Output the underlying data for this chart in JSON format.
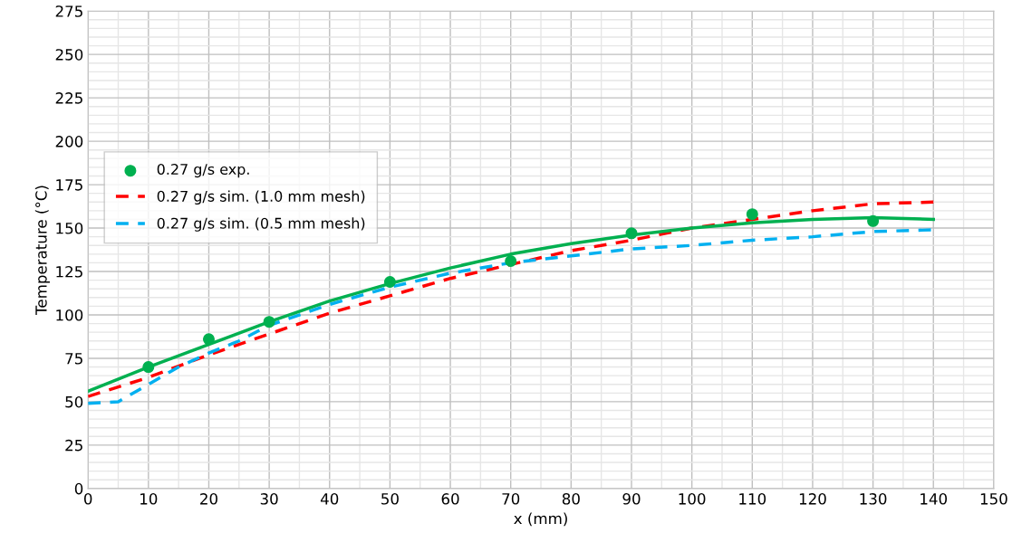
{
  "chart_data": {
    "type": "scatter",
    "xlabel": "x (mm)",
    "ylabel": "Temperature (°C)",
    "xlim": [
      0,
      150
    ],
    "xticks": [
      0,
      10,
      20,
      30,
      40,
      50,
      60,
      70,
      80,
      90,
      100,
      110,
      120,
      130,
      140,
      150
    ],
    "ylim": [
      0,
      275
    ],
    "yticks": [
      0,
      25,
      50,
      75,
      100,
      125,
      150,
      175,
      200,
      225,
      250,
      275
    ],
    "grid": true,
    "legend": "left",
    "series": [
      {
        "name": "0.27 g/s exp.",
        "marker": "circle",
        "color": "#00b050",
        "x": [
          10,
          20,
          30,
          50,
          70,
          90,
          110,
          130
        ],
        "values": [
          70,
          86,
          96,
          119,
          131,
          147,
          158,
          154
        ]
      },
      {
        "name": "0.27 g/s sim. (1.0 mm mesh)",
        "type": "line",
        "line_style": "dashed",
        "color": "#ff0000",
        "x": [
          0,
          10,
          20,
          30,
          40,
          50,
          60,
          70,
          80,
          90,
          100,
          110,
          120,
          130,
          140
        ],
        "values": [
          53,
          64,
          77,
          89,
          101,
          111,
          121,
          129,
          137,
          143,
          150,
          155,
          160,
          164,
          165
        ]
      },
      {
        "name": "0.27 g/s sim. (0.5 mm mesh)",
        "type": "line",
        "line_style": "dashed",
        "color": "#00b0f0",
        "x": [
          0,
          5,
          10,
          15,
          20,
          25,
          30,
          40,
          50,
          60,
          70,
          80,
          90,
          100,
          110,
          120,
          130,
          140
        ],
        "values": [
          49,
          50,
          60,
          70,
          78,
          85,
          94,
          106,
          116,
          124,
          130,
          134,
          138,
          140,
          143,
          145,
          148,
          149
        ]
      },
      {
        "type": "line",
        "line_style": "solid",
        "color": "#00b050",
        "x": [
          0,
          10,
          20,
          30,
          40,
          50,
          60,
          70,
          80,
          90,
          100,
          110,
          120,
          130,
          140
        ],
        "values": [
          56,
          70,
          83,
          96,
          108,
          118,
          127,
          135,
          141,
          146,
          150,
          153,
          155,
          156,
          155
        ]
      }
    ]
  }
}
